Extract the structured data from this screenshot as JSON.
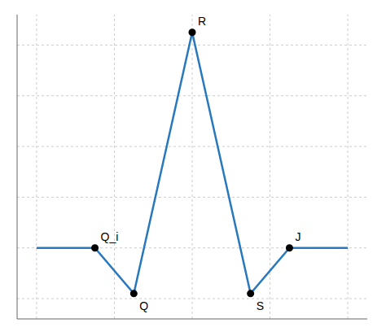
{
  "chart_data": {
    "type": "line",
    "series": [
      {
        "type": "line",
        "color": "#2878BE",
        "x": [
          0.0,
          1.5,
          2.5,
          4.0,
          5.5,
          6.5,
          8.0
        ],
        "values": [
          0.0,
          0.0,
          -1.8,
          8.5,
          -1.8,
          0.0,
          0.0
        ]
      },
      {
        "type": "scatter",
        "color": "#000000",
        "marker": "circle",
        "x": [
          1.5,
          2.5,
          4.0,
          5.5,
          6.5
        ],
        "values": [
          0.0,
          -1.8,
          8.5,
          -1.8,
          0.0
        ]
      }
    ],
    "annotations": [
      {
        "text": "Q_i",
        "x": 1.5,
        "y": 0.0
      },
      {
        "text": "Q",
        "x": 2.5,
        "y": -1.8
      },
      {
        "text": "R",
        "x": 4.0,
        "y": 8.5
      },
      {
        "text": "S",
        "x": 5.5,
        "y": -1.8
      },
      {
        "text": "J",
        "x": 6.5,
        "y": 0.0
      }
    ],
    "xlim": [
      -0.5,
      8.5
    ],
    "ylim": [
      -2.8,
      9.2
    ],
    "xticks": [
      0.0,
      2.0,
      4.0,
      6.0,
      8.0
    ],
    "yticks": [
      -2.0,
      0.0,
      2.0,
      4.0,
      6.0,
      8.0
    ],
    "grid": true,
    "tick_labels": false
  }
}
